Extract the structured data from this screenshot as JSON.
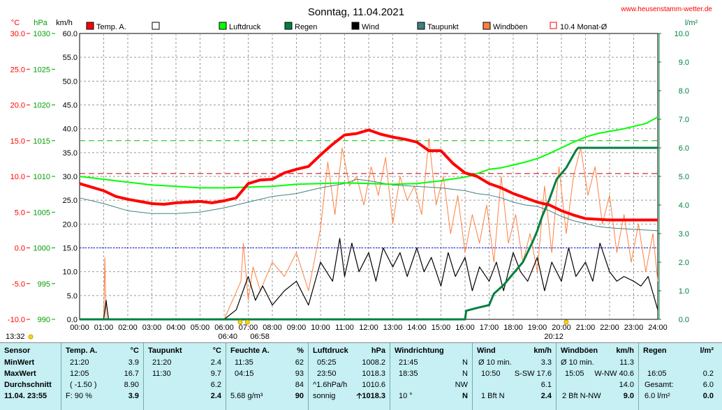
{
  "chart_data": {
    "type": "line",
    "title": "Sonntag, 11.04.2021",
    "source": "www.heusenstamm-wetter.de",
    "axes": {
      "temp": {
        "unit": "°C",
        "range": [
          -10,
          30
        ],
        "ticks": [
          "30.0",
          "25.0",
          "20.0",
          "15.0",
          "10.0",
          "5.0",
          "0.0",
          "-5.0",
          "-10.0"
        ]
      },
      "pressure": {
        "unit": "hPa",
        "range": [
          990,
          1030
        ],
        "ticks": [
          "1030",
          "1025",
          "1020",
          "1015",
          "1010",
          "1005",
          "1000",
          "995",
          "990"
        ]
      },
      "wind": {
        "unit": "km/h",
        "range": [
          0,
          60
        ],
        "ticks": [
          "60.0",
          "55.0",
          "50.0",
          "45.0",
          "40.0",
          "35.0",
          "30.0",
          "25.0",
          "20.0",
          "15.0",
          "10.0",
          "5.0",
          "0.0"
        ]
      },
      "rain": {
        "unit": "l/m²",
        "range": [
          0,
          10
        ],
        "ticks": [
          "10.0",
          "9.0",
          "8.0",
          "7.0",
          "6.0",
          "5.0",
          "4.0",
          "3.0",
          "2.0",
          "1.0",
          "0.0"
        ]
      },
      "time": {
        "ticks": [
          "00:00",
          "01:00",
          "02:00",
          "03:00",
          "04:00",
          "05:00",
          "06:00",
          "07:00",
          "08:00",
          "09:00",
          "10:00",
          "11:00",
          "12:00",
          "13:00",
          "14:00",
          "15:00",
          "16:00",
          "17:00",
          "18:00",
          "19:00",
          "20:00",
          "21:00",
          "22:00",
          "23:00",
          "24:00"
        ]
      }
    },
    "markers": {
      "sunrise": "06:40",
      "sunrise2": "06:58",
      "sunset": "20:12",
      "left_time": "13:32"
    },
    "legend": [
      {
        "name": "Temp. A.",
        "color": "#ff0000",
        "style": "box"
      },
      {
        "name": "",
        "color": "#ffffff",
        "style": "box"
      },
      {
        "name": "Luftdruck",
        "color": "#00ff00",
        "style": "box"
      },
      {
        "name": "Regen",
        "color": "#008040",
        "style": "box"
      },
      {
        "name": "Wind",
        "color": "#000000",
        "style": "box"
      },
      {
        "name": "Taupunkt",
        "color": "#408080",
        "style": "box"
      },
      {
        "name": "Windböen",
        "color": "#ff8040",
        "style": "box"
      },
      {
        "name": "10.4 Monat-Ø",
        "color": "#ff0000",
        "style": "outline"
      }
    ],
    "reference_lines": {
      "month_avg_temp": 10.4,
      "pressure_ref": 1015,
      "zero_temp": 0
    },
    "series": [
      {
        "name": "Temp. A.",
        "color": "#ff0000",
        "axis": "temp",
        "x": [
          0,
          0.5,
          1,
          1.5,
          2,
          2.5,
          3,
          3.5,
          4,
          4.5,
          5,
          5.5,
          6,
          6.5,
          7,
          7.5,
          8,
          8.5,
          9,
          9.5,
          10,
          10.5,
          11,
          11.5,
          12,
          12.5,
          13,
          13.5,
          14,
          14.5,
          15,
          15.5,
          16,
          16.5,
          17,
          17.5,
          18,
          18.5,
          19,
          19.5,
          20,
          20.5,
          21,
          21.5,
          22,
          22.5,
          23,
          23.5,
          24
        ],
        "y": [
          9.0,
          8.5,
          8.0,
          7.2,
          6.8,
          6.5,
          6.2,
          6.1,
          6.3,
          6.4,
          6.5,
          6.3,
          6.6,
          7.0,
          9.0,
          9.5,
          9.6,
          10.5,
          11.0,
          11.4,
          13.0,
          14.5,
          15.8,
          16.0,
          16.5,
          15.9,
          15.5,
          15.2,
          14.8,
          13.6,
          13.6,
          11.8,
          10.5,
          10.0,
          9.0,
          8.4,
          7.6,
          7.0,
          6.4,
          6.0,
          5.2,
          4.6,
          4.1,
          4.0,
          3.9,
          3.9,
          3.9,
          3.9,
          3.9
        ]
      },
      {
        "name": "Luftdruck",
        "color": "#00ff00",
        "axis": "pressure",
        "x": [
          0,
          1,
          2,
          3,
          4,
          5,
          6,
          7,
          8,
          9,
          10,
          11,
          12,
          13,
          14,
          15,
          16,
          16.5,
          17,
          17.5,
          18,
          18.5,
          19,
          19.5,
          20,
          20.5,
          21,
          21.5,
          22,
          22.5,
          23,
          23.5,
          24
        ],
        "y": [
          1010.0,
          1009.6,
          1009.2,
          1008.8,
          1008.6,
          1008.4,
          1008.4,
          1008.5,
          1008.6,
          1008.9,
          1009.0,
          1009.1,
          1009.0,
          1008.9,
          1009.0,
          1009.4,
          1009.9,
          1010.4,
          1011.0,
          1011.2,
          1011.6,
          1012.0,
          1012.5,
          1013.2,
          1014.0,
          1014.8,
          1015.5,
          1016.0,
          1016.3,
          1016.6,
          1017.0,
          1017.4,
          1018.3
        ]
      },
      {
        "name": "Taupunkt",
        "color": "#408080",
        "axis": "temp",
        "x": [
          0,
          1,
          2,
          3,
          4,
          5,
          6,
          7,
          8,
          9,
          10,
          11,
          11.5,
          12,
          13,
          14,
          15,
          16,
          16.5,
          17,
          17.5,
          18,
          18.5,
          19,
          19.5,
          20,
          20.5,
          21,
          21.5,
          22,
          23,
          24
        ],
        "y": [
          7.0,
          6.2,
          5.2,
          4.8,
          4.8,
          5.0,
          5.6,
          6.4,
          7.2,
          7.6,
          8.4,
          9.0,
          9.6,
          9.4,
          8.8,
          8.6,
          8.4,
          8.0,
          7.6,
          7.4,
          7.0,
          6.4,
          6.0,
          5.8,
          5.2,
          4.4,
          3.8,
          3.4,
          3.0,
          2.8,
          2.6,
          2.4
        ]
      },
      {
        "name": "Wind",
        "color": "#000000",
        "axis": "wind",
        "x": [
          0,
          1,
          1.1,
          1.2,
          2,
          3,
          4,
          5,
          6,
          6.5,
          7,
          7.3,
          7.6,
          8,
          8.5,
          9,
          9.5,
          10,
          10.5,
          10.8,
          11,
          11.3,
          11.6,
          12,
          12.3,
          12.6,
          13,
          13.3,
          13.6,
          14,
          14.3,
          14.6,
          15,
          15.3,
          15.6,
          16,
          16.3,
          16.6,
          17,
          17.3,
          17.6,
          18,
          18.3,
          18.6,
          19,
          19.3,
          19.6,
          20,
          20.3,
          20.6,
          21,
          21.3,
          21.6,
          22,
          22.3,
          22.6,
          23,
          23.3,
          23.6,
          24
        ],
        "y": [
          0,
          0,
          4,
          0,
          0,
          0,
          0,
          0,
          0,
          2,
          9,
          4,
          7,
          3,
          6,
          8,
          3,
          12,
          8,
          17,
          9,
          16,
          10,
          14,
          8,
          15,
          11,
          14,
          9,
          15,
          10,
          13,
          7,
          14,
          9,
          13,
          6,
          11,
          8,
          12,
          6,
          14,
          10,
          8,
          13,
          6,
          12,
          8,
          15,
          9,
          12,
          8,
          16,
          10,
          8,
          9,
          8,
          7,
          9,
          2
        ]
      },
      {
        "name": "Windböen",
        "color": "#ff8040",
        "axis": "wind",
        "x": [
          0,
          1,
          1.05,
          1.1,
          2,
          3,
          4,
          5,
          6,
          6.7,
          6.8,
          7,
          7.2,
          7.5,
          8,
          8.5,
          9,
          9.5,
          10,
          10.3,
          10.6,
          10.9,
          11.2,
          11.5,
          11.8,
          12.1,
          12.4,
          12.7,
          13,
          13.3,
          13.6,
          13.9,
          14.2,
          14.5,
          14.8,
          15.1,
          15.4,
          15.7,
          16,
          16.3,
          16.6,
          16.9,
          17.2,
          17.5,
          17.8,
          18.1,
          18.4,
          18.7,
          19,
          19.3,
          19.6,
          19.9,
          20.2,
          20.5,
          20.8,
          21.1,
          21.4,
          21.7,
          22,
          22.3,
          22.6,
          22.9,
          23.2,
          23.5,
          23.8,
          24
        ],
        "y": [
          0,
          0,
          13,
          0,
          0,
          0,
          0,
          0,
          0,
          8,
          16,
          4,
          11,
          6,
          12,
          9,
          14,
          6,
          19,
          33,
          22,
          36,
          28,
          30,
          24,
          32,
          26,
          34,
          20,
          30,
          25,
          28,
          22,
          38,
          24,
          30,
          18,
          26,
          14,
          22,
          16,
          24,
          12,
          30,
          16,
          22,
          12,
          18,
          10,
          28,
          14,
          32,
          18,
          30,
          36,
          26,
          32,
          20,
          26,
          14,
          22,
          12,
          20,
          10,
          18,
          8
        ]
      },
      {
        "name": "Regen",
        "color": "#008040",
        "axis": "rain",
        "x": [
          0,
          16,
          16.05,
          16.5,
          17,
          17.2,
          17.6,
          18,
          18.4,
          18.8,
          19,
          19.2,
          19.5,
          19.8,
          20,
          20.2,
          20.4,
          20.6,
          20.7,
          21,
          22,
          23,
          24
        ],
        "y": [
          0,
          0,
          0.3,
          0.4,
          0.5,
          0.9,
          1.2,
          1.6,
          2.0,
          2.7,
          3.1,
          3.6,
          4.2,
          4.9,
          5.1,
          5.3,
          5.6,
          5.9,
          6.0,
          6.0,
          6.0,
          6.0,
          6.0
        ]
      }
    ]
  },
  "table": {
    "sensor": {
      "header": "Sensor",
      "rows": [
        "MinWert",
        "MaxWert",
        "Durchschnitt",
        "11.04. 23:55"
      ]
    },
    "temp": {
      "header": "Temp. A.",
      "unit": "°C",
      "rows": [
        [
          "21:20",
          "3.9"
        ],
        [
          "12:05",
          "16.7"
        ],
        [
          "( -1.50 )",
          "8.90"
        ],
        [
          "F: 90 %",
          "3.9"
        ]
      ]
    },
    "taupunkt": {
      "header": "Taupunkt",
      "unit": "°C",
      "rows": [
        [
          "21:20",
          "2.4"
        ],
        [
          "11:30",
          "9.7"
        ],
        [
          "",
          "6.2"
        ],
        [
          "",
          "2.4"
        ]
      ]
    },
    "feuchte": {
      "header": "Feuchte A.",
      "unit": "%",
      "rows": [
        [
          "11:35",
          "62"
        ],
        [
          "04:15",
          "93"
        ],
        [
          "",
          "84"
        ],
        [
          "5.68 g/m³",
          "90"
        ]
      ]
    },
    "luftdruck": {
      "header": "Luftdruck",
      "unit": "hPa",
      "rows": [
        [
          "05:25",
          "1008.2"
        ],
        [
          "23:50",
          "1018.3"
        ],
        [
          "^1.6hPa/h",
          "1010.6"
        ],
        [
          "sonnig",
          "1018.3"
        ]
      ]
    },
    "windrichtung": {
      "header": "Windrichtung",
      "rows": [
        [
          "21:45",
          "N"
        ],
        [
          "18:35",
          "N"
        ],
        [
          "",
          "NW"
        ],
        [
          "10 °",
          "N"
        ]
      ]
    },
    "wind": {
      "header": "Wind",
      "unit": "km/h",
      "rows": [
        [
          "Ø 10 min.",
          "3.3"
        ],
        [
          "10:50",
          "S-SW 17.6"
        ],
        [
          "",
          "6.1"
        ],
        [
          "1 Bft N",
          "2.4"
        ]
      ]
    },
    "windboen": {
      "header": "Windböen",
      "unit": "km/h",
      "rows": [
        [
          "Ø 10 min.",
          "11.3"
        ],
        [
          "15:05",
          "W-NW 40.6"
        ],
        [
          "",
          "14.0"
        ],
        [
          "2 Bft N-NW",
          "9.0"
        ]
      ]
    },
    "regen": {
      "header": "Regen",
      "unit": "l/m²",
      "rows": [
        [
          "",
          ""
        ],
        [
          "16:05",
          "0.2"
        ],
        [
          "Gesamt:",
          "6.0"
        ],
        [
          "6.0 l/m²",
          "0.0"
        ]
      ]
    }
  }
}
